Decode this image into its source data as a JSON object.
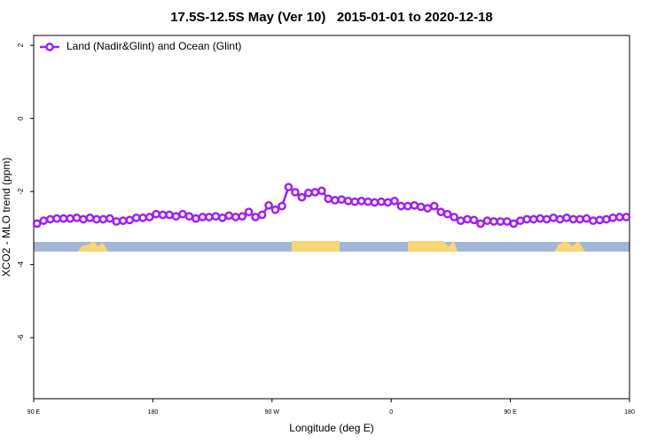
{
  "chart_data": {
    "type": "line",
    "title": "17.5S-12.5S May (Ver 10)   2015-01-01 to 2020-12-18",
    "x_label": "Longitude (deg E)",
    "y_label": "XCO2 - MLO trend (ppm)",
    "xlim": [
      90,
      540
    ],
    "ylim": [
      -7.67,
      2.27
    ],
    "xticks": [
      {
        "value": 90,
        "label": "90 E"
      },
      {
        "value": 180,
        "label": "180"
      },
      {
        "value": 270,
        "label": "90 W"
      },
      {
        "value": 360,
        "label": "0"
      },
      {
        "value": 450,
        "label": "90 E"
      },
      {
        "value": 540,
        "label": "180"
      }
    ],
    "yticks": [
      2,
      0,
      -2,
      -4,
      -6
    ],
    "legend": "upper left",
    "x": [
      92.5,
      97.5,
      102.5,
      107.5,
      112.5,
      117.5,
      122.5,
      127.5,
      132.5,
      137.5,
      142.5,
      147.5,
      152.5,
      157.5,
      162.5,
      167.5,
      172.5,
      177.5,
      182.5,
      187.5,
      192.5,
      197.5,
      202.5,
      207.5,
      212.5,
      217.5,
      222.5,
      227.5,
      232.5,
      237.5,
      242.5,
      247.5,
      252.5,
      257.5,
      262.5,
      267.5,
      272.5,
      277.5,
      282.5,
      287.5,
      292.5,
      297.5,
      302.5,
      307.5,
      312.5,
      317.5,
      322.5,
      327.5,
      332.5,
      337.5,
      342.5,
      347.5,
      352.5,
      357.5,
      362.5,
      367.5,
      372.5,
      377.5,
      382.5,
      387.5,
      392.5,
      397.5,
      402.5,
      407.5,
      412.5,
      417.5,
      422.5,
      427.5,
      432.5,
      437.5,
      442.5,
      447.5,
      452.5,
      457.5,
      462.5,
      467.5,
      472.5,
      477.5,
      482.5,
      487.5,
      492.5,
      497.5,
      502.5,
      507.5,
      512.5,
      517.5,
      522.5,
      527.5,
      532.5,
      537.5
    ],
    "series": [
      {
        "name": "Land (Nadir&Glint) and Ocean (Glint)",
        "color": "#a020f0",
        "values": [
          -2.88,
          -2.8,
          -2.76,
          -2.74,
          -2.74,
          -2.74,
          -2.72,
          -2.76,
          -2.72,
          -2.76,
          -2.76,
          -2.74,
          -2.82,
          -2.8,
          -2.78,
          -2.72,
          -2.72,
          -2.7,
          -2.62,
          -2.64,
          -2.64,
          -2.68,
          -2.62,
          -2.68,
          -2.74,
          -2.7,
          -2.7,
          -2.68,
          -2.72,
          -2.66,
          -2.7,
          -2.68,
          -2.56,
          -2.7,
          -2.64,
          -2.38,
          -2.5,
          -2.4,
          -1.88,
          -2.02,
          -2.16,
          -2.04,
          -2.02,
          -1.98,
          -2.2,
          -2.24,
          -2.22,
          -2.26,
          -2.28,
          -2.26,
          -2.28,
          -2.3,
          -2.28,
          -2.3,
          -2.26,
          -2.4,
          -2.4,
          -2.38,
          -2.42,
          -2.46,
          -2.4,
          -2.56,
          -2.62,
          -2.7,
          -2.8,
          -2.76,
          -2.78,
          -2.88,
          -2.8,
          -2.82,
          -2.82,
          -2.82,
          -2.88,
          -2.8,
          -2.76,
          -2.76,
          -2.74,
          -2.76,
          -2.72,
          -2.76,
          -2.72,
          -2.76,
          -2.76,
          -2.74,
          -2.8,
          -2.78,
          -2.76,
          -2.72,
          -2.7,
          -2.7
        ]
      }
    ]
  }
}
